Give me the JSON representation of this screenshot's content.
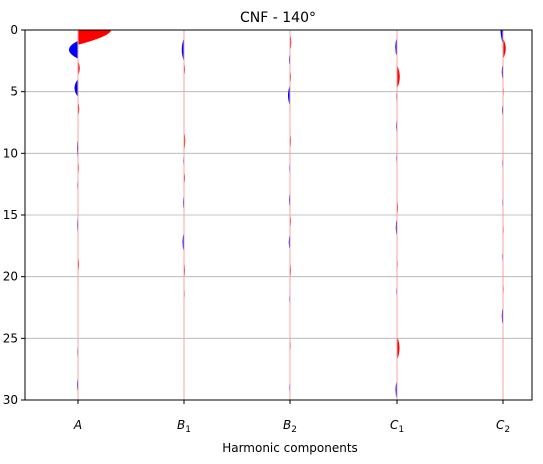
{
  "chart_data": {
    "type": "area",
    "title": "CNF - 140°",
    "xlabel": "Harmonic components",
    "ylabel": "",
    "categories": [
      {
        "base": "A",
        "sub": ""
      },
      {
        "base": "B",
        "sub": "1"
      },
      {
        "base": "B",
        "sub": "2"
      },
      {
        "base": "C",
        "sub": "1"
      },
      {
        "base": "C",
        "sub": "2"
      }
    ],
    "ylim": [
      30,
      0
    ],
    "yticks": [
      0,
      5,
      10,
      15,
      20,
      25,
      30
    ],
    "ytick_labels": [
      "0",
      "5",
      "10",
      "15",
      "20",
      "25",
      "30"
    ],
    "grid": "y",
    "colors": {
      "positive": "#ff0000",
      "negative": "#0000ff",
      "baseline": "#f4a6a6",
      "grid": "#b0b0b0"
    },
    "series": [
      {
        "lobes": [
          [
            0.0,
            3.3,
            0.0,
            1.2
          ],
          [
            1.6,
            -1.8,
            0.6,
            1.2
          ],
          [
            3.1,
            0.35,
            0.5,
            1.2
          ],
          [
            4.7,
            -0.7,
            0.6,
            1.2
          ],
          [
            6.4,
            0.25,
            0.5,
            1.2
          ],
          [
            9.6,
            -0.2,
            0.8,
            1.2
          ],
          [
            11.2,
            0.18,
            0.5,
            1.2
          ],
          [
            12.6,
            -0.15,
            0.5,
            1.2
          ],
          [
            15.8,
            -0.18,
            0.7,
            1.2
          ],
          [
            19.0,
            0.2,
            0.6,
            1.2
          ],
          [
            22.6,
            -0.1,
            0.5,
            1.2
          ],
          [
            26.1,
            -0.15,
            0.6,
            1.2
          ],
          [
            28.8,
            -0.2,
            0.6,
            1.2
          ]
        ]
      },
      {
        "lobes": [
          [
            1.6,
            -0.45,
            0.8,
            1.2
          ],
          [
            3.2,
            0.2,
            0.5,
            1.2
          ],
          [
            9.0,
            0.25,
            0.7,
            1.2
          ],
          [
            10.6,
            -0.15,
            0.5,
            1.2
          ],
          [
            12.0,
            0.2,
            0.5,
            1.2
          ],
          [
            14.0,
            -0.2,
            0.6,
            1.2
          ],
          [
            17.2,
            -0.3,
            0.7,
            1.2
          ],
          [
            19.5,
            0.2,
            0.6,
            1.2
          ],
          [
            21.4,
            0.15,
            0.5,
            1.2
          ]
        ]
      },
      {
        "lobes": [
          [
            1.0,
            0.25,
            0.6,
            1.2
          ],
          [
            2.4,
            -0.2,
            0.5,
            1.2
          ],
          [
            3.8,
            0.2,
            0.5,
            1.2
          ],
          [
            5.3,
            -0.4,
            0.7,
            1.2
          ],
          [
            9.0,
            0.2,
            0.6,
            1.2
          ],
          [
            11.2,
            -0.15,
            0.5,
            1.2
          ],
          [
            13.8,
            -0.2,
            0.6,
            1.2
          ],
          [
            15.5,
            0.2,
            0.5,
            1.2
          ],
          [
            17.2,
            -0.25,
            0.6,
            1.2
          ],
          [
            19.5,
            0.2,
            0.6,
            1.2
          ],
          [
            21.8,
            -0.15,
            0.5,
            1.2
          ],
          [
            25.6,
            0.15,
            0.5,
            1.2
          ],
          [
            29.0,
            -0.15,
            0.5,
            1.2
          ]
        ]
      },
      {
        "lobes": [
          [
            1.4,
            -0.35,
            0.7,
            1.2
          ],
          [
            3.8,
            0.55,
            0.8,
            1.2
          ],
          [
            5.4,
            -0.15,
            0.5,
            1.2
          ],
          [
            7.8,
            -0.18,
            0.6,
            1.2
          ],
          [
            10.4,
            -0.15,
            0.5,
            1.2
          ],
          [
            14.4,
            0.2,
            0.6,
            1.2
          ],
          [
            16.0,
            -0.25,
            0.7,
            1.2
          ],
          [
            19.0,
            0.15,
            0.5,
            1.2
          ],
          [
            21.2,
            -0.15,
            0.5,
            1.2
          ],
          [
            25.8,
            0.5,
            0.8,
            1.2
          ],
          [
            29.2,
            -0.3,
            0.7,
            1.2
          ]
        ]
      },
      {
        "lobes": [
          [
            0.0,
            -0.25,
            0.0,
            1.2
          ],
          [
            1.5,
            0.55,
            0.7,
            1.2
          ],
          [
            3.4,
            -0.25,
            0.6,
            1.2
          ],
          [
            5.0,
            0.15,
            0.5,
            1.2
          ],
          [
            6.5,
            -0.2,
            0.5,
            1.2
          ],
          [
            7.8,
            0.1,
            0.5,
            1.2
          ],
          [
            10.8,
            -0.15,
            0.5,
            1.2
          ],
          [
            14.0,
            -0.15,
            0.5,
            1.2
          ],
          [
            16.2,
            0.15,
            0.5,
            1.2
          ],
          [
            18.4,
            -0.15,
            0.5,
            1.2
          ],
          [
            21.0,
            0.15,
            0.5,
            1.2
          ],
          [
            23.2,
            -0.25,
            0.7,
            1.2
          ],
          [
            26.2,
            0.1,
            0.5,
            1.2
          ]
        ]
      }
    ]
  }
}
